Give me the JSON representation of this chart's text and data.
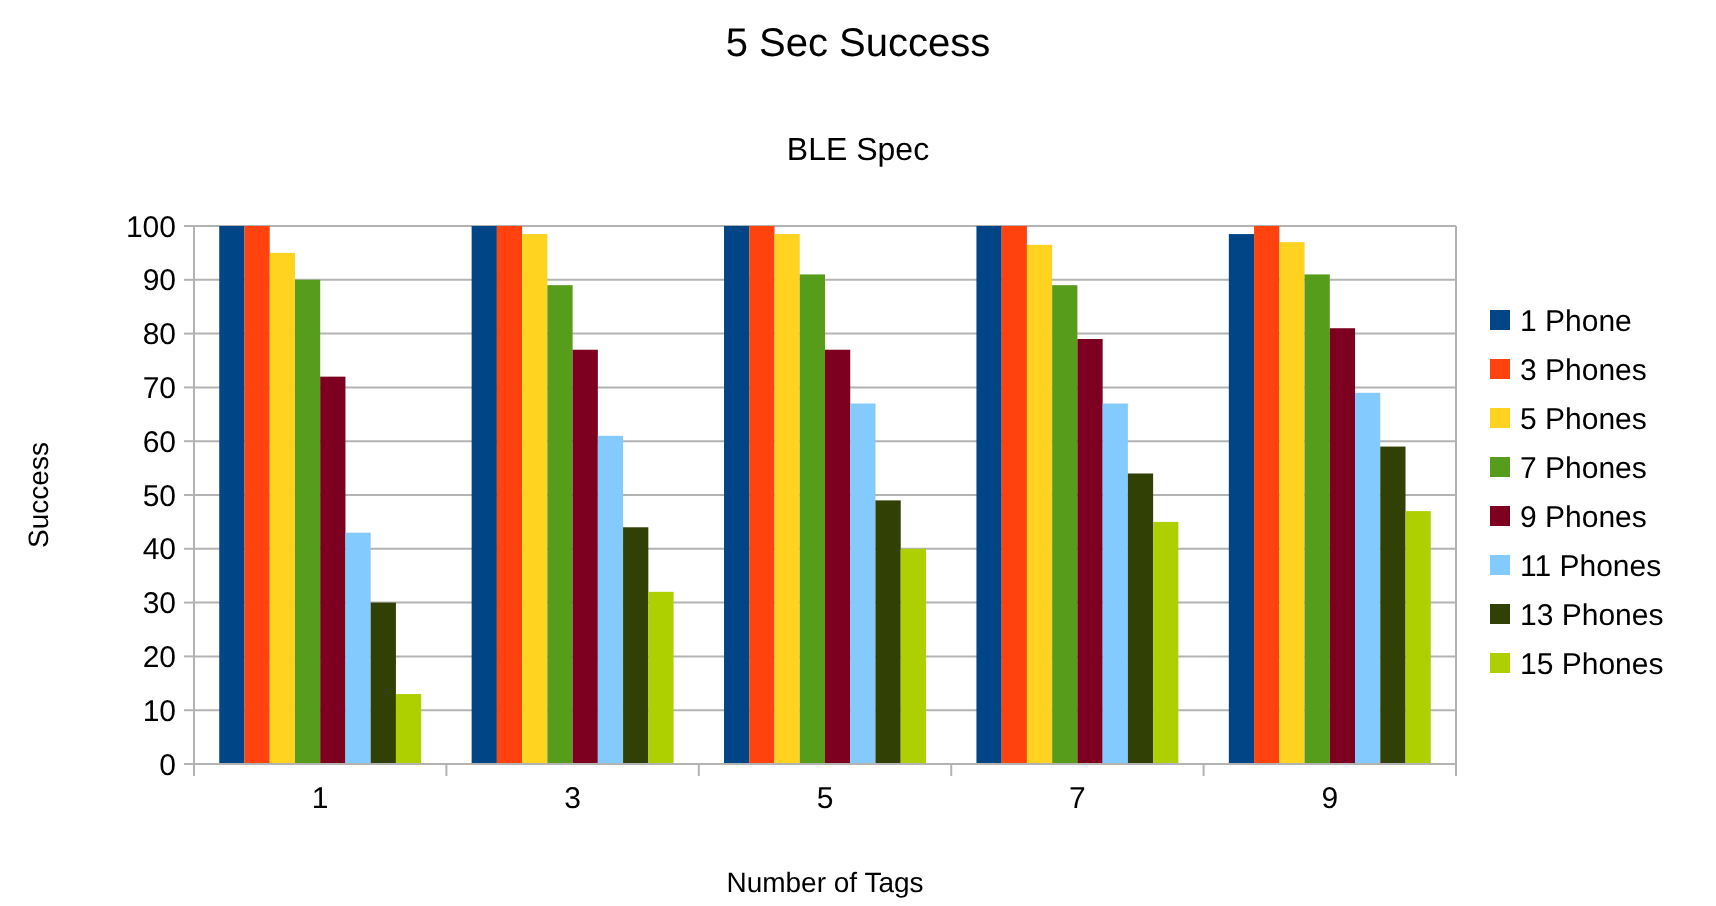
{
  "chart_data": {
    "type": "bar",
    "title": "5 Sec Success",
    "subtitle": "BLE Spec",
    "xlabel": "Number of Tags",
    "ylabel": "Success",
    "categories": [
      "1",
      "3",
      "5",
      "7",
      "9"
    ],
    "series": [
      {
        "name": "1 Phone",
        "color": "#004586",
        "values": [
          100,
          100,
          100,
          100,
          98.5
        ]
      },
      {
        "name": "3 Phones",
        "color": "#ff420e",
        "values": [
          100,
          100,
          100,
          100,
          100
        ]
      },
      {
        "name": "5 Phones",
        "color": "#ffd320",
        "values": [
          95,
          98.5,
          98.5,
          96.5,
          97
        ]
      },
      {
        "name": "7 Phones",
        "color": "#579d1c",
        "values": [
          90,
          89,
          91,
          89,
          91
        ]
      },
      {
        "name": "9 Phones",
        "color": "#7e0021",
        "values": [
          72,
          77,
          77,
          79,
          81
        ]
      },
      {
        "name": "11 Phones",
        "color": "#83caff",
        "values": [
          43,
          61,
          67,
          67,
          69
        ]
      },
      {
        "name": "13 Phones",
        "color": "#314004",
        "values": [
          30,
          44,
          49,
          54,
          59
        ]
      },
      {
        "name": "15 Phones",
        "color": "#aecf00",
        "values": [
          13,
          32,
          40,
          45,
          47
        ]
      }
    ],
    "ylim": [
      0,
      100
    ],
    "yticks": [
      0,
      10,
      20,
      30,
      40,
      50,
      60,
      70,
      80,
      90,
      100
    ],
    "grid": "y",
    "legend": "right"
  }
}
